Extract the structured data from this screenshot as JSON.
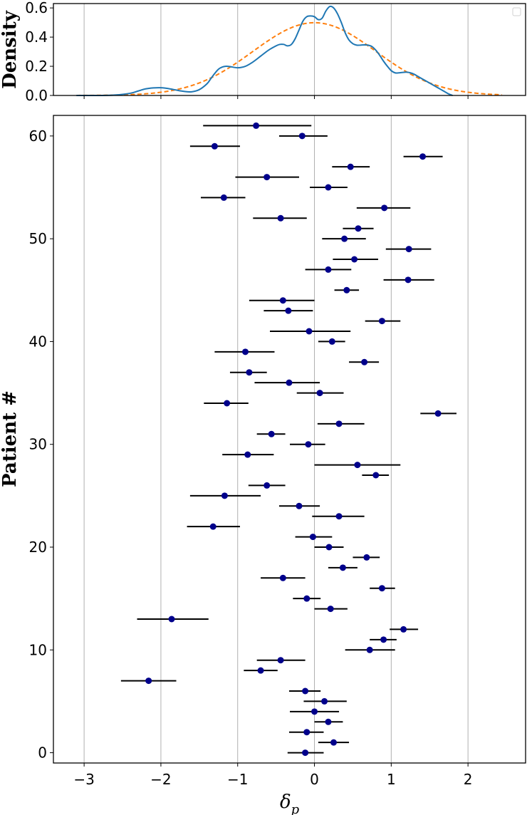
{
  "chart_data": [
    {
      "type": "line",
      "ylabel": "Density",
      "xlim": [
        -3.4,
        2.75
      ],
      "ylim": [
        0,
        0.63
      ],
      "yticks": [
        0.0,
        0.2,
        0.4,
        0.6
      ],
      "ytick_labels": [
        "0.0",
        "0.2",
        "0.4",
        "0.6"
      ],
      "xticks": [
        -3,
        -2,
        -1,
        0,
        1,
        2
      ],
      "grid": "vertical",
      "legend": "top-right (empty)",
      "series": [
        {
          "style": "solid",
          "color": "#1f77b4",
          "x": [
            -3.1,
            -2.8,
            -2.6,
            -2.4,
            -2.3,
            -2.2,
            -2.1,
            -2.0,
            -1.9,
            -1.8,
            -1.7,
            -1.6,
            -1.5,
            -1.4,
            -1.35,
            -1.3,
            -1.25,
            -1.2,
            -1.15,
            -1.1,
            -1.0,
            -0.9,
            -0.8,
            -0.7,
            -0.6,
            -0.5,
            -0.45,
            -0.4,
            -0.35,
            -0.3,
            -0.25,
            -0.2,
            -0.15,
            -0.1,
            -0.05,
            0.0,
            0.05,
            0.1,
            0.15,
            0.2,
            0.25,
            0.3,
            0.35,
            0.4,
            0.45,
            0.5,
            0.55,
            0.6,
            0.65,
            0.7,
            0.75,
            0.8,
            0.85,
            0.9,
            0.95,
            1.0,
            1.05,
            1.1,
            1.15,
            1.2,
            1.25,
            1.3,
            1.35,
            1.4,
            1.45,
            1.5,
            1.55,
            1.6,
            1.65,
            1.7,
            1.75,
            1.8
          ],
          "y": [
            0.0,
            0.0,
            0.003,
            0.015,
            0.03,
            0.045,
            0.052,
            0.053,
            0.047,
            0.037,
            0.028,
            0.025,
            0.04,
            0.08,
            0.115,
            0.15,
            0.18,
            0.195,
            0.2,
            0.198,
            0.19,
            0.2,
            0.23,
            0.27,
            0.31,
            0.34,
            0.35,
            0.35,
            0.34,
            0.35,
            0.39,
            0.45,
            0.51,
            0.54,
            0.545,
            0.54,
            0.52,
            0.53,
            0.58,
            0.61,
            0.6,
            0.56,
            0.5,
            0.43,
            0.38,
            0.355,
            0.345,
            0.345,
            0.347,
            0.345,
            0.335,
            0.31,
            0.275,
            0.235,
            0.2,
            0.17,
            0.155,
            0.155,
            0.158,
            0.16,
            0.155,
            0.145,
            0.13,
            0.115,
            0.1,
            0.085,
            0.07,
            0.055,
            0.04,
            0.025,
            0.01,
            0.0
          ]
        },
        {
          "style": "dashed",
          "color": "#ff7f0e",
          "distribution": "normal",
          "mean": 0.0,
          "sd": 0.8,
          "x_range": [
            -3.1,
            2.45
          ]
        }
      ]
    },
    {
      "type": "scatter",
      "ylabel": "Patient #",
      "xlabel": "δ",
      "xlabel_subscript": "p",
      "xlim": [
        -3.4,
        2.75
      ],
      "ylim": [
        -1,
        62
      ],
      "xticks": [
        -3,
        -2,
        -1,
        0,
        1,
        2
      ],
      "xtick_labels": [
        "−3",
        "−2",
        "−1",
        "0",
        "1",
        "2"
      ],
      "yticks": [
        0,
        10,
        20,
        30,
        40,
        50,
        60
      ],
      "ytick_labels": [
        "0",
        "10",
        "20",
        "30",
        "40",
        "50",
        "60"
      ],
      "grid": "vertical",
      "marker_color": "#00008b",
      "errorbar_color": "#000000",
      "points": [
        {
          "patient": 0,
          "value": -0.12,
          "low": -0.35,
          "high": 0.12
        },
        {
          "patient": 1,
          "value": 0.25,
          "low": 0.05,
          "high": 0.45
        },
        {
          "patient": 2,
          "value": -0.1,
          "low": -0.33,
          "high": 0.12
        },
        {
          "patient": 3,
          "value": 0.18,
          "low": 0.0,
          "high": 0.37
        },
        {
          "patient": 4,
          "value": 0.0,
          "low": -0.32,
          "high": 0.32
        },
        {
          "patient": 5,
          "value": 0.13,
          "low": -0.14,
          "high": 0.42
        },
        {
          "patient": 6,
          "value": -0.12,
          "low": -0.33,
          "high": 0.08
        },
        {
          "patient": 7,
          "value": -2.16,
          "low": -2.52,
          "high": -1.8
        },
        {
          "patient": 8,
          "value": -0.7,
          "low": -0.92,
          "high": -0.48
        },
        {
          "patient": 9,
          "value": -0.44,
          "low": -0.75,
          "high": -0.12
        },
        {
          "patient": 10,
          "value": 0.72,
          "low": 0.4,
          "high": 1.05
        },
        {
          "patient": 11,
          "value": 0.9,
          "low": 0.72,
          "high": 1.07
        },
        {
          "patient": 12,
          "value": 1.16,
          "low": 0.98,
          "high": 1.35
        },
        {
          "patient": 13,
          "value": -1.86,
          "low": -2.31,
          "high": -1.38
        },
        {
          "patient": 14,
          "value": 0.21,
          "low": 0.0,
          "high": 0.43
        },
        {
          "patient": 15,
          "value": -0.1,
          "low": -0.28,
          "high": 0.08
        },
        {
          "patient": 16,
          "value": 0.88,
          "low": 0.72,
          "high": 1.05
        },
        {
          "patient": 17,
          "value": -0.41,
          "low": -0.7,
          "high": -0.12
        },
        {
          "patient": 18,
          "value": 0.37,
          "low": 0.18,
          "high": 0.56
        },
        {
          "patient": 19,
          "value": 0.68,
          "low": 0.5,
          "high": 0.85
        },
        {
          "patient": 20,
          "value": 0.19,
          "low": 0.0,
          "high": 0.38
        },
        {
          "patient": 21,
          "value": -0.02,
          "low": -0.25,
          "high": 0.23
        },
        {
          "patient": 22,
          "value": -1.32,
          "low": -1.66,
          "high": -0.97
        },
        {
          "patient": 23,
          "value": 0.32,
          "low": -0.03,
          "high": 0.65
        },
        {
          "patient": 24,
          "value": -0.2,
          "low": -0.46,
          "high": 0.07
        },
        {
          "patient": 25,
          "value": -1.17,
          "low": -1.62,
          "high": -0.7
        },
        {
          "patient": 26,
          "value": -0.62,
          "low": -0.86,
          "high": -0.38
        },
        {
          "patient": 27,
          "value": 0.8,
          "low": 0.62,
          "high": 0.97
        },
        {
          "patient": 28,
          "value": 0.56,
          "low": 0.0,
          "high": 1.12
        },
        {
          "patient": 29,
          "value": -0.87,
          "low": -1.2,
          "high": -0.53
        },
        {
          "patient": 30,
          "value": -0.08,
          "low": -0.32,
          "high": 0.14
        },
        {
          "patient": 31,
          "value": -0.56,
          "low": -0.75,
          "high": -0.38
        },
        {
          "patient": 32,
          "value": 0.32,
          "low": 0.04,
          "high": 0.65
        },
        {
          "patient": 33,
          "value": 1.61,
          "low": 1.38,
          "high": 1.85
        },
        {
          "patient": 34,
          "value": -1.14,
          "low": -1.44,
          "high": -0.86
        },
        {
          "patient": 35,
          "value": 0.07,
          "low": -0.23,
          "high": 0.38
        },
        {
          "patient": 36,
          "value": -0.33,
          "low": -0.78,
          "high": 0.07
        },
        {
          "patient": 37,
          "value": -0.85,
          "low": -1.1,
          "high": -0.62
        },
        {
          "patient": 38,
          "value": 0.65,
          "low": 0.45,
          "high": 0.84
        },
        {
          "patient": 39,
          "value": -0.9,
          "low": -1.3,
          "high": -0.52
        },
        {
          "patient": 40,
          "value": 0.23,
          "low": 0.05,
          "high": 0.4
        },
        {
          "patient": 41,
          "value": -0.07,
          "low": -0.58,
          "high": 0.47
        },
        {
          "patient": 42,
          "value": 0.88,
          "low": 0.66,
          "high": 1.12
        },
        {
          "patient": 43,
          "value": -0.34,
          "low": -0.66,
          "high": -0.02
        },
        {
          "patient": 44,
          "value": -0.41,
          "low": -0.85,
          "high": 0.0
        },
        {
          "patient": 45,
          "value": 0.42,
          "low": 0.26,
          "high": 0.58
        },
        {
          "patient": 46,
          "value": 1.22,
          "low": 0.9,
          "high": 1.56
        },
        {
          "patient": 47,
          "value": 0.18,
          "low": -0.12,
          "high": 0.48
        },
        {
          "patient": 48,
          "value": 0.52,
          "low": 0.24,
          "high": 0.83
        },
        {
          "patient": 49,
          "value": 1.23,
          "low": 0.93,
          "high": 1.52
        },
        {
          "patient": 50,
          "value": 0.39,
          "low": 0.1,
          "high": 0.67
        },
        {
          "patient": 51,
          "value": 0.57,
          "low": 0.37,
          "high": 0.77
        },
        {
          "patient": 52,
          "value": -0.44,
          "low": -0.8,
          "high": -0.1
        },
        {
          "patient": 53,
          "value": 0.91,
          "low": 0.55,
          "high": 1.25
        },
        {
          "patient": 54,
          "value": -1.18,
          "low": -1.48,
          "high": -0.9
        },
        {
          "patient": 55,
          "value": 0.18,
          "low": -0.06,
          "high": 0.43
        },
        {
          "patient": 56,
          "value": -0.62,
          "low": -1.03,
          "high": -0.2
        },
        {
          "patient": 57,
          "value": 0.47,
          "low": 0.23,
          "high": 0.72
        },
        {
          "patient": 58,
          "value": 1.41,
          "low": 1.16,
          "high": 1.67
        },
        {
          "patient": 59,
          "value": -1.3,
          "low": -1.62,
          "high": -0.97
        },
        {
          "patient": 60,
          "value": -0.16,
          "low": -0.46,
          "high": 0.17
        },
        {
          "patient": 61,
          "value": -0.76,
          "low": -1.45,
          "high": -0.04
        }
      ]
    }
  ]
}
